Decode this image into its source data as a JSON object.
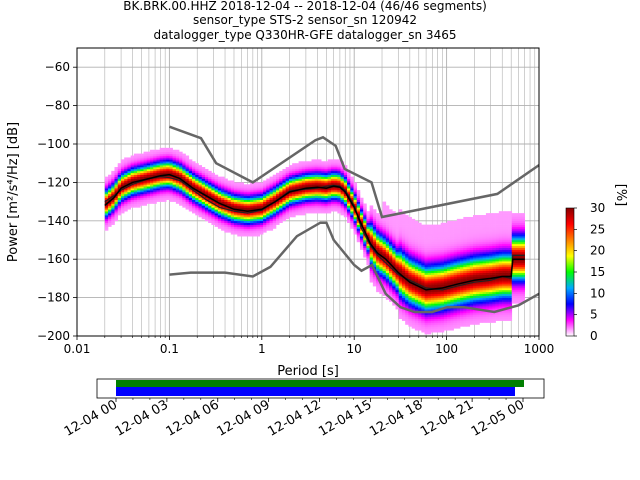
{
  "chart_data": {
    "type": "heatmap",
    "title_lines": [
      "BK.BRK.00.HHZ   2018-12-04 -- 2018-12-04  (46/46 segments)",
      "sensor_type STS-2 sensor_sn 120942",
      "datalogger_type Q330HR-GFE datalogger_sn 3465"
    ],
    "xlabel": "Period [s]",
    "ylabel": "Power [m²/s⁴/Hz] [dB]",
    "x_scale": "log",
    "xlim": [
      0.01,
      1000
    ],
    "ylim": [
      -200,
      -50
    ],
    "x_ticks": [
      {
        "value": 0.01,
        "label": "0.01"
      },
      {
        "value": 0.1,
        "label": "0.1"
      },
      {
        "value": 1,
        "label": "1"
      },
      {
        "value": 10,
        "label": "10"
      },
      {
        "value": 100,
        "label": "100"
      },
      {
        "value": 1000,
        "label": "1000"
      }
    ],
    "y_ticks": [
      {
        "value": -60,
        "label": "−60"
      },
      {
        "value": -80,
        "label": "−80"
      },
      {
        "value": -100,
        "label": "−100"
      },
      {
        "value": -120,
        "label": "−120"
      },
      {
        "value": -140,
        "label": "−140"
      },
      {
        "value": -160,
        "label": "−160"
      },
      {
        "value": -180,
        "label": "−180"
      },
      {
        "value": -200,
        "label": "−200"
      }
    ],
    "grid": true,
    "noise_models": [
      {
        "points": [
          [
            0.1,
            -91
          ],
          [
            0.22,
            -97
          ],
          [
            0.32,
            -110
          ],
          [
            0.8,
            -120
          ],
          [
            3.8,
            -98
          ],
          [
            4.6,
            -96.5
          ],
          [
            6.3,
            -101
          ],
          [
            7.9,
            -113
          ],
          [
            15.4,
            -120
          ],
          [
            20,
            -138
          ],
          [
            354.8,
            -126
          ],
          [
            1000,
            -111
          ]
        ]
      },
      {
        "points": [
          [
            0.1,
            -168
          ],
          [
            0.17,
            -167
          ],
          [
            0.4,
            -167
          ],
          [
            0.8,
            -169
          ],
          [
            1.24,
            -164
          ],
          [
            2.4,
            -148
          ],
          [
            4.3,
            -141
          ],
          [
            5,
            -141
          ],
          [
            6,
            -150
          ],
          [
            10,
            -163
          ],
          [
            12,
            -166
          ],
          [
            15.6,
            -163
          ],
          [
            21.9,
            -178
          ],
          [
            31.6,
            -185
          ],
          [
            45,
            -187.5
          ],
          [
            70,
            -187.5
          ],
          [
            101,
            -185
          ],
          [
            154,
            -185
          ],
          [
            328,
            -187.5
          ],
          [
            600,
            -184
          ],
          [
            1000,
            -178
          ]
        ]
      }
    ],
    "mean_curve": {
      "points": [
        [
          0.02,
          -132
        ],
        [
          0.025,
          -128
        ],
        [
          0.03,
          -123
        ],
        [
          0.04,
          -120
        ],
        [
          0.06,
          -118
        ],
        [
          0.08,
          -116.5
        ],
        [
          0.1,
          -116
        ],
        [
          0.13,
          -118
        ],
        [
          0.18,
          -123
        ],
        [
          0.25,
          -127
        ],
        [
          0.35,
          -131
        ],
        [
          0.5,
          -134
        ],
        [
          0.7,
          -135
        ],
        [
          1,
          -134
        ],
        [
          1.4,
          -130
        ],
        [
          2,
          -125
        ],
        [
          3,
          -123
        ],
        [
          4,
          -122.5
        ],
        [
          5,
          -123
        ],
        [
          6,
          -122
        ],
        [
          7,
          -122.5
        ],
        [
          8,
          -125
        ],
        [
          10,
          -133
        ],
        [
          12,
          -142
        ],
        [
          15,
          -152
        ],
        [
          18,
          -157
        ],
        [
          22,
          -160
        ],
        [
          30,
          -167
        ],
        [
          40,
          -172
        ],
        [
          60,
          -176
        ],
        [
          90,
          -175
        ],
        [
          130,
          -173
        ],
        [
          200,
          -171
        ],
        [
          300,
          -170
        ],
        [
          400,
          -169
        ],
        [
          500,
          -169
        ],
        [
          520,
          -160
        ],
        [
          700,
          -160
        ]
      ]
    },
    "mode_curve": {
      "points": [
        [
          0.02,
          -130
        ],
        [
          0.025,
          -127
        ],
        [
          0.03,
          -124
        ],
        [
          0.04,
          -121
        ],
        [
          0.06,
          -118
        ],
        [
          0.08,
          -117
        ],
        [
          0.1,
          -117.5
        ],
        [
          0.13,
          -119
        ],
        [
          0.18,
          -124
        ],
        [
          0.25,
          -129
        ],
        [
          0.35,
          -133
        ],
        [
          0.5,
          -135
        ],
        [
          0.7,
          -136
        ],
        [
          1,
          -134.5
        ],
        [
          1.4,
          -130
        ],
        [
          2,
          -124.5
        ],
        [
          3,
          -123.5
        ],
        [
          4,
          -123
        ],
        [
          5,
          -122
        ],
        [
          6,
          -121.5
        ],
        [
          7,
          -122
        ],
        [
          8,
          -124
        ],
        [
          10,
          -132
        ],
        [
          12,
          -144
        ],
        [
          15,
          -153
        ],
        [
          18,
          -158
        ],
        [
          22,
          -162
        ],
        [
          30,
          -168
        ],
        [
          40,
          -171
        ],
        [
          60,
          -175
        ],
        [
          90,
          -176
        ],
        [
          130,
          -174
        ],
        [
          200,
          -172
        ],
        [
          300,
          -171
        ],
        [
          400,
          -169
        ],
        [
          500,
          -170
        ],
        [
          520,
          -158
        ],
        [
          700,
          -158
        ]
      ]
    },
    "colorbar": {
      "label": "[%]",
      "min": 0,
      "max": 30,
      "ticks": [
        {
          "value": 0,
          "label": "0"
        },
        {
          "value": 5,
          "label": "5"
        },
        {
          "value": 10,
          "label": "10"
        },
        {
          "value": 15,
          "label": "15"
        },
        {
          "value": 20,
          "label": "20"
        },
        {
          "value": 25,
          "label": "25"
        },
        {
          "value": 30,
          "label": "30"
        }
      ],
      "colors": [
        "#ffffff",
        "#ff00ff",
        "#0000ff",
        "#00aaff",
        "#00ff00",
        "#ffff00",
        "#ff8000",
        "#ff0000",
        "#880000"
      ]
    },
    "coverage": {
      "tick_labels": [
        "12-04 00",
        "12-04 03",
        "12-04 06",
        "12-04 09",
        "12-04 12",
        "12-04 15",
        "12-04 18",
        "12-04 21",
        "12-05 00"
      ],
      "data_color": "#0000ff",
      "segment_color": "#007f00"
    }
  }
}
